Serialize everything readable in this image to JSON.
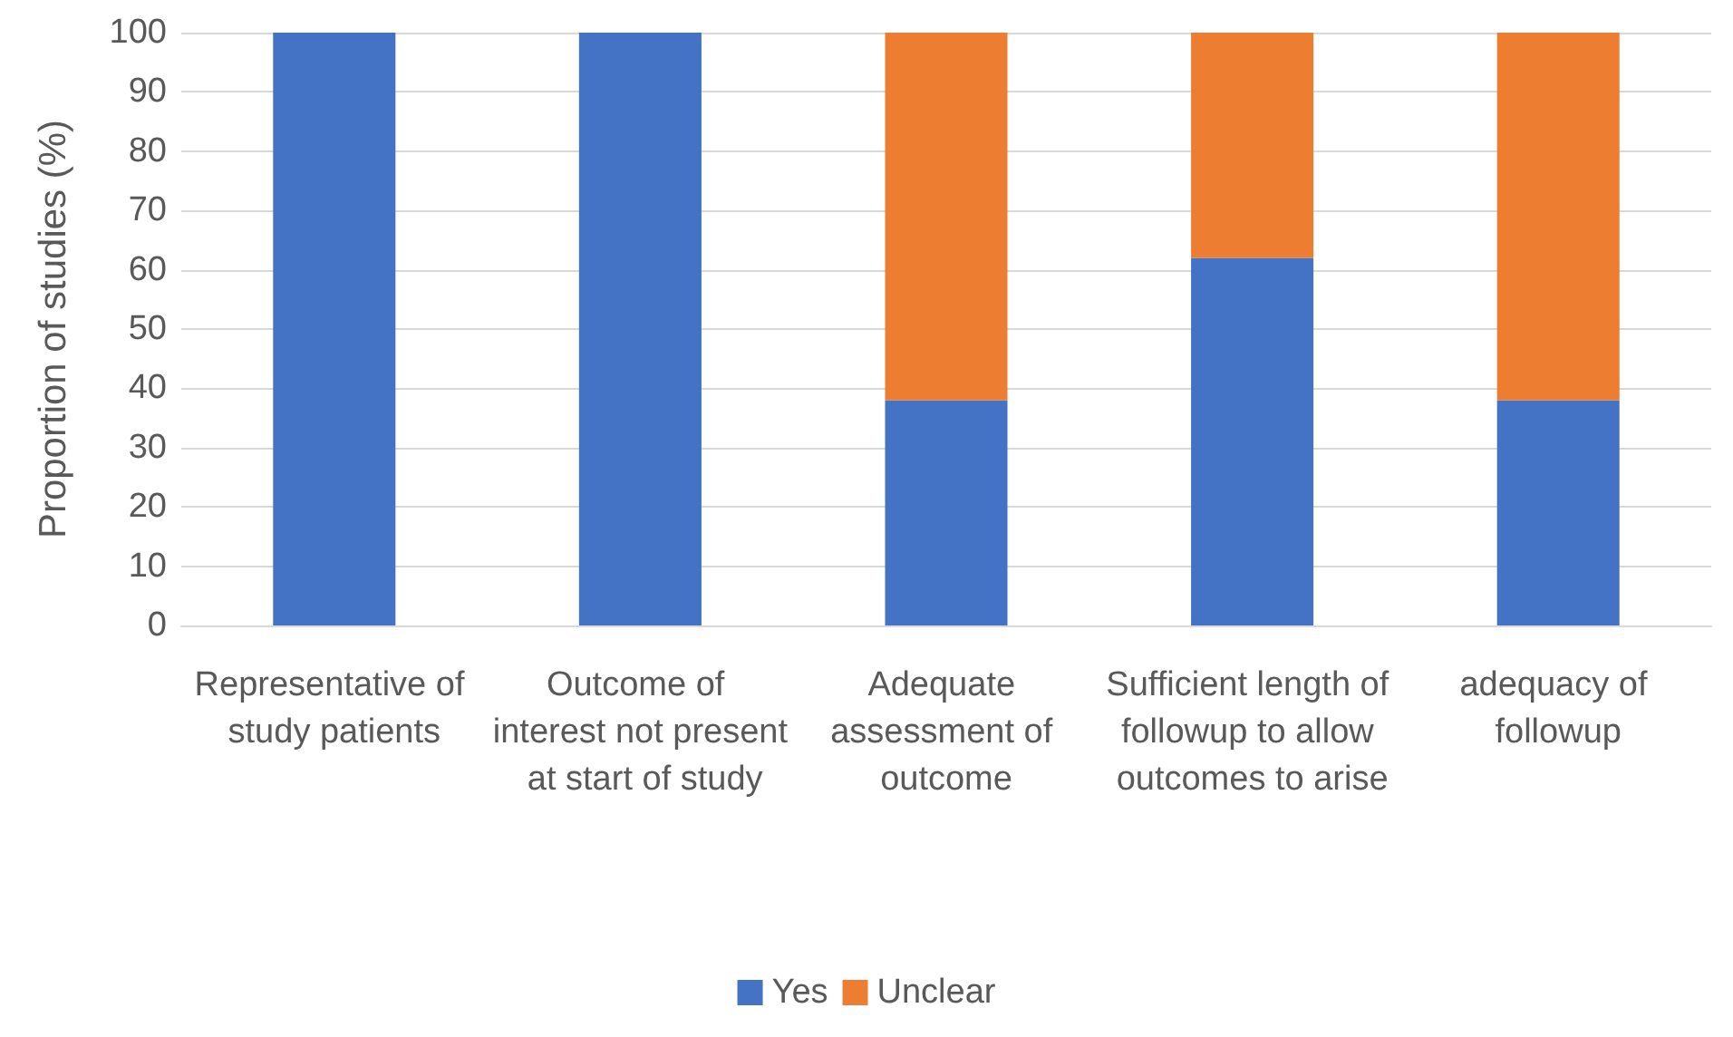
{
  "chart_data": {
    "type": "bar",
    "stacked": true,
    "ylabel": "Proportion of studies (%)",
    "categories": [
      "Representative of study patients",
      "Outcome of interest not present at start of study",
      "Adequate assessment of outcome",
      "Sufficient length of followup to allow outcomes to arise",
      "adequacy of followup"
    ],
    "series": [
      {
        "name": "Yes",
        "color": "#4472c4",
        "values": [
          100,
          100,
          38,
          62,
          38
        ]
      },
      {
        "name": "Unclear",
        "color": "#ed7d31",
        "values": [
          0,
          0,
          62,
          38,
          62
        ]
      }
    ],
    "ylim": [
      0,
      100
    ],
    "yticks": [
      0,
      10,
      20,
      30,
      40,
      50,
      60,
      70,
      80,
      90,
      100
    ],
    "grid": "y",
    "legend": "bottom"
  }
}
